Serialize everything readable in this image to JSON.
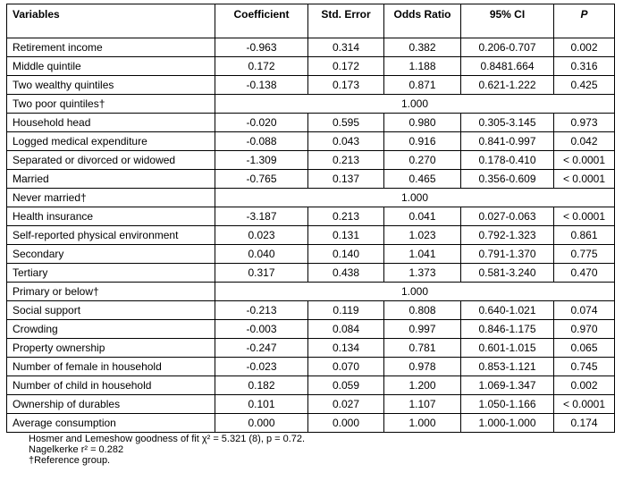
{
  "header": {
    "variables": "Variables",
    "coefficient": "Coefficient",
    "std_error": "Std. Error",
    "odds_ratio": "Odds Ratio",
    "ci": "95% CI",
    "p": "P"
  },
  "rows": [
    {
      "label": "Retirement income",
      "coef": "-0.963",
      "se": "0.314",
      "or": "0.382",
      "ci": "0.206-0.707",
      "p": "0.002"
    },
    {
      "label": "Middle quintile",
      "coef": "0.172",
      "se": "0.172",
      "or": "1.188",
      "ci": "0.8481.664",
      "p": "0.316"
    },
    {
      "label": "Two wealthy quintiles",
      "coef": "-0.138",
      "se": "0.173",
      "or": "0.871",
      "ci": "0.621-1.222",
      "p": "0.425"
    },
    {
      "label": "Two poor quintiles†",
      "ref": true,
      "or": "1.000"
    },
    {
      "label": "Household head",
      "coef": "-0.020",
      "se": "0.595",
      "or": "0.980",
      "ci": "0.305-3.145",
      "p": "0.973"
    },
    {
      "label": "Logged medical expenditure",
      "coef": "-0.088",
      "se": "0.043",
      "or": "0.916",
      "ci": "0.841-0.997",
      "p": "0.042"
    },
    {
      "label": "Separated or divorced or widowed",
      "coef": "-1.309",
      "se": "0.213",
      "or": "0.270",
      "ci": "0.178-0.410",
      "p": "< 0.0001"
    },
    {
      "label": "Married",
      "coef": "-0.765",
      "se": "0.137",
      "or": "0.465",
      "ci": "0.356-0.609",
      "p": "< 0.0001"
    },
    {
      "label": "Never married†",
      "ref": true,
      "or": "1.000"
    },
    {
      "label": "Health insurance",
      "coef": "-3.187",
      "se": "0.213",
      "or": "0.041",
      "ci": "0.027-0.063",
      "p": "< 0.0001"
    },
    {
      "label": "Self-reported physical environment",
      "coef": "0.023",
      "se": "0.131",
      "or": "1.023",
      "ci": "0.792-1.323",
      "p": "0.861"
    },
    {
      "label": "Secondary",
      "coef": "0.040",
      "se": "0.140",
      "or": "1.041",
      "ci": "0.791-1.370",
      "p": "0.775"
    },
    {
      "label": "Tertiary",
      "coef": "0.317",
      "se": "0.438",
      "or": "1.373",
      "ci": "0.581-3.240",
      "p": "0.470"
    },
    {
      "label": "Primary or below†",
      "ref": true,
      "or": "1.000"
    },
    {
      "label": "Social support",
      "coef": "-0.213",
      "se": "0.119",
      "or": "0.808",
      "ci": "0.640-1.021",
      "p": "0.074"
    },
    {
      "label": "Crowding",
      "coef": "-0.003",
      "se": "0.084",
      "or": "0.997",
      "ci": "0.846-1.175",
      "p": "0.970"
    },
    {
      "label": "Property ownership",
      "coef": "-0.247",
      "se": "0.134",
      "or": "0.781",
      "ci": "0.601-1.015",
      "p": "0.065"
    },
    {
      "label": "Number of female in household",
      "coef": "-0.023",
      "se": "0.070",
      "or": "0.978",
      "ci": "0.853-1.121",
      "p": "0.745"
    },
    {
      "label": "Number of child in household",
      "coef": "0.182",
      "se": "0.059",
      "or": "1.200",
      "ci": "1.069-1.347",
      "p": "0.002"
    },
    {
      "label": "Ownership of durables",
      "coef": "0.101",
      "se": "0.027",
      "or": "1.107",
      "ci": "1.050-1.166",
      "p": "< 0.0001"
    },
    {
      "label": "Average consumption",
      "coef": "0.000",
      "se": "0.000",
      "or": "1.000",
      "ci": "1.000-1.000",
      "p": "0.174"
    }
  ],
  "notes": {
    "hosmer": "Hosmer and Lemeshow goodness of fit χ² = 5.321 (8), p = 0.72.",
    "nagelkerke": "Nagelkerke r² = 0.282",
    "reference": "†Reference group."
  }
}
